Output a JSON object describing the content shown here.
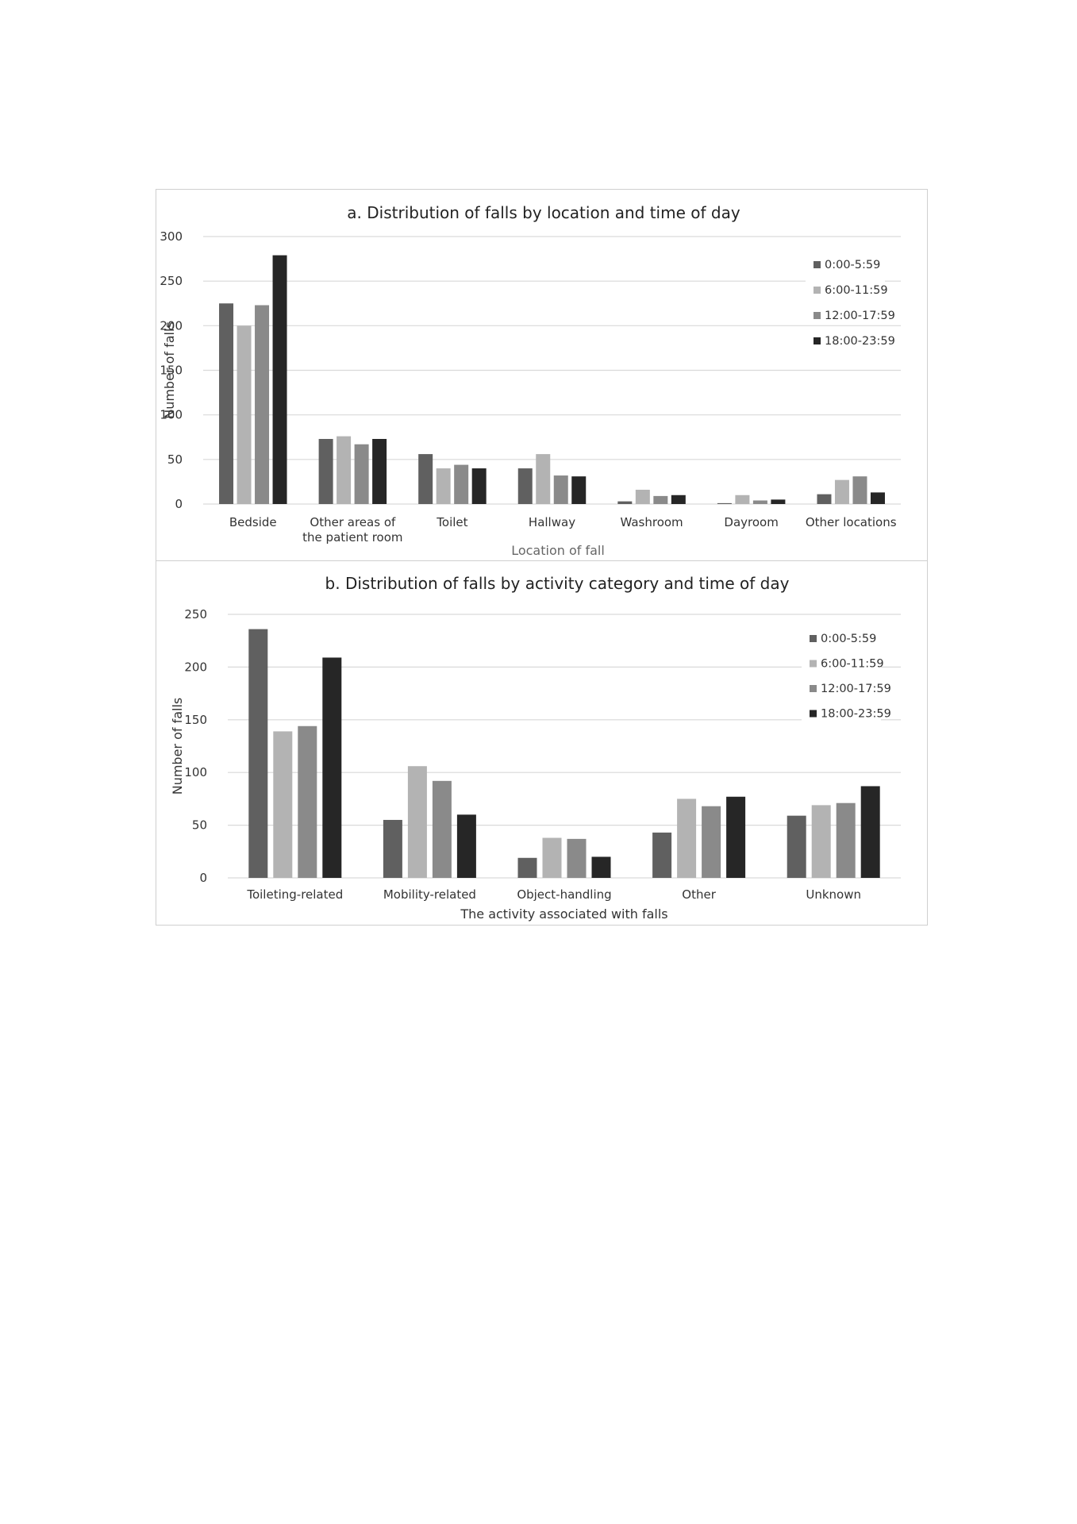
{
  "chart_data": [
    {
      "type": "bar",
      "title": "a. Distribution of falls by location and time of day",
      "xlabel": "Location of fall",
      "ylabel": "Number of falls",
      "ylim": [
        0,
        300
      ],
      "yticks": [
        0,
        50,
        100,
        150,
        200,
        250,
        300
      ],
      "grid": true,
      "legend_position": "top-right",
      "categories": [
        [
          "Bedside"
        ],
        [
          "Other areas of",
          "the patient room"
        ],
        [
          "Toilet"
        ],
        [
          "Hallway"
        ],
        [
          "Washroom"
        ],
        [
          "Dayroom"
        ],
        [
          "Other locations"
        ]
      ],
      "series": [
        {
          "name": "0:00-5:59",
          "color": "#606060",
          "values": [
            225,
            73,
            56,
            40,
            3,
            1,
            11
          ]
        },
        {
          "name": "6:00-11:59",
          "color": "#b3b3b3",
          "values": [
            200,
            76,
            40,
            56,
            16,
            10,
            27
          ]
        },
        {
          "name": "12:00-17:59",
          "color": "#8a8a8a",
          "values": [
            223,
            67,
            44,
            32,
            9,
            4,
            31
          ]
        },
        {
          "name": "18:00-23:59",
          "color": "#262626",
          "values": [
            279,
            73,
            40,
            31,
            10,
            5,
            13
          ]
        }
      ]
    },
    {
      "type": "bar",
      "title": "b. Distribution of falls by activity category and time of day",
      "xlabel": "The activity associated with falls",
      "ylabel": "Number of falls",
      "ylim": [
        0,
        250
      ],
      "yticks": [
        0,
        50,
        100,
        150,
        200,
        250
      ],
      "grid": true,
      "legend_position": "top-right",
      "categories": [
        [
          "Toileting-related"
        ],
        [
          "Mobility-related"
        ],
        [
          "Object-handling"
        ],
        [
          "Other"
        ],
        [
          "Unknown"
        ]
      ],
      "series": [
        {
          "name": "0:00-5:59",
          "color": "#606060",
          "values": [
            236,
            55,
            19,
            43,
            59
          ]
        },
        {
          "name": "6:00-11:59",
          "color": "#b3b3b3",
          "values": [
            139,
            106,
            38,
            75,
            69
          ]
        },
        {
          "name": "12:00-17:59",
          "color": "#8a8a8a",
          "values": [
            144,
            92,
            37,
            68,
            71
          ]
        },
        {
          "name": "18:00-23:59",
          "color": "#262626",
          "values": [
            209,
            60,
            20,
            77,
            87
          ]
        }
      ]
    }
  ]
}
